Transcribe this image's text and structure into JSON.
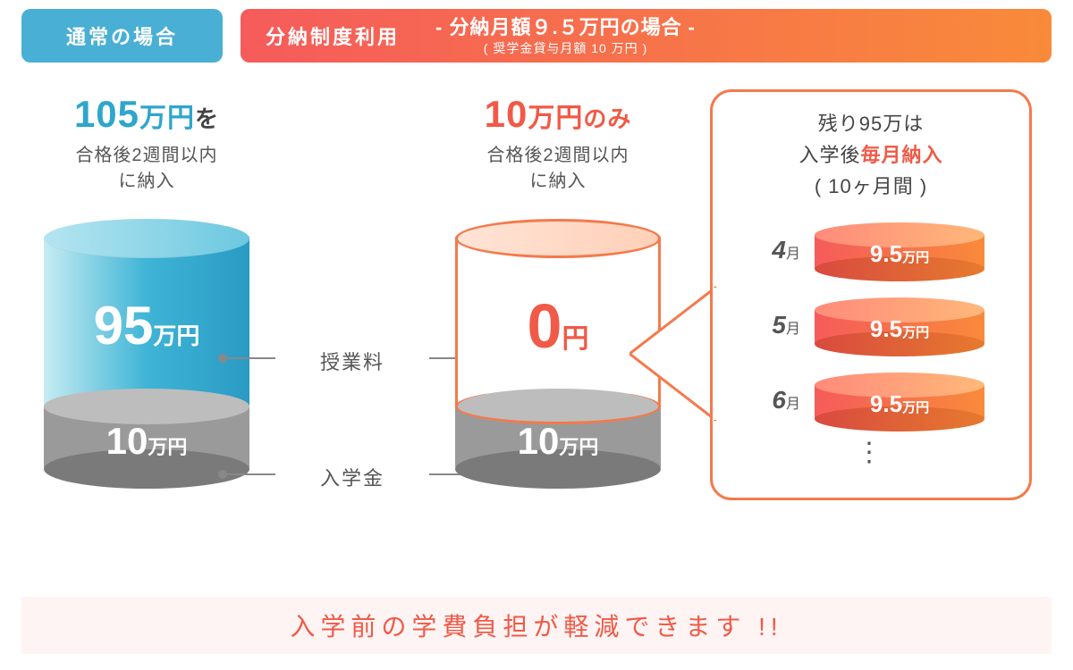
{
  "colors": {
    "blue_header": "#49afd4",
    "orange_grad_from": "#f55b5b",
    "orange_grad_to": "#f98a3a",
    "blue_text": "#2ea6cd",
    "orange_text": "#f05a47",
    "orange_border": "#f47a4c",
    "gray_text": "#555555",
    "gray_cyl": "#9a9a9a",
    "gray_cyl_light": "#bdbdbd",
    "gray_cyl_dark": "#7a7a7a",
    "footer_bg": "#fff4f4"
  },
  "header": {
    "left_label": "通常の場合",
    "right_title": "分納制度利用",
    "right_sub_main": "- 分納月額９.５万円の場合 -",
    "right_sub_small": "( 奨学金貸与月額 10 万円 )"
  },
  "normal": {
    "big_amount": "105",
    "big_unit": "万円",
    "big_suffix": "を",
    "subline1": "合格後2週間以内",
    "subline2": "に納入",
    "tuition_amount": "95",
    "tuition_unit": "万円",
    "enroll_amount": "10",
    "enroll_unit": "万円"
  },
  "center": {
    "tuition_label": "授業料",
    "enroll_label": "入学金"
  },
  "install": {
    "big_amount": "10",
    "big_unit": "万円",
    "big_suffix": "のみ",
    "subline1": "合格後2週間以内",
    "subline2": "に納入",
    "tuition_amount": "0",
    "tuition_unit": "円",
    "enroll_amount": "10",
    "enroll_unit": "万円"
  },
  "monthly": {
    "line1_prefix": "残り95万は",
    "line2_prefix": "入学後",
    "line2_accent": "毎月納入",
    "line3": "( 10ヶ月間 )",
    "items": [
      {
        "month_num": "4",
        "month_suf": "月",
        "amount": "9.5",
        "unit": "万円"
      },
      {
        "month_num": "5",
        "month_suf": "月",
        "amount": "9.5",
        "unit": "万円"
      },
      {
        "month_num": "6",
        "month_suf": "月",
        "amount": "9.5",
        "unit": "万円"
      }
    ],
    "vdots": "⋮"
  },
  "footer": {
    "text": "入学前の学費負担が軽減できます !!"
  }
}
